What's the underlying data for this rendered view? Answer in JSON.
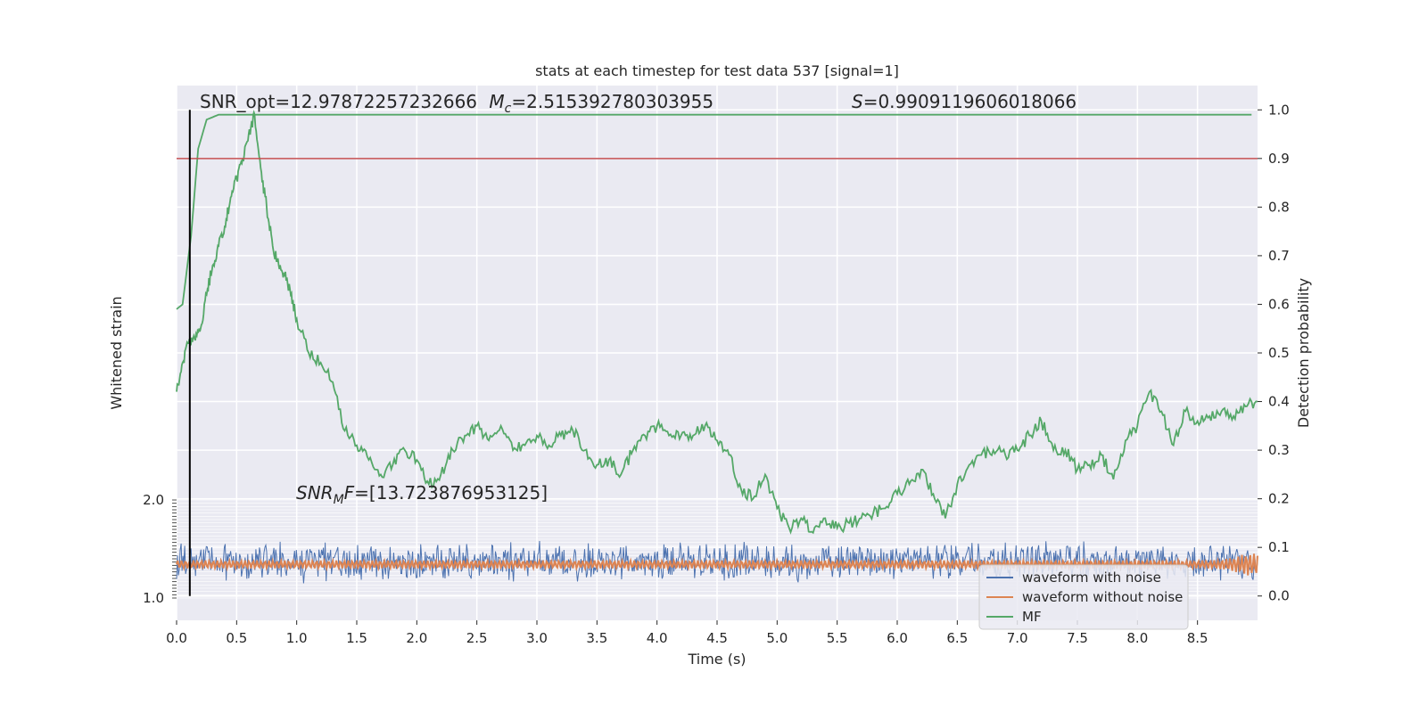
{
  "chart_data": {
    "type": "line",
    "title": "stats at each timestep for test data 537 [signal=1]",
    "xlabel": "Time (s)",
    "ylabel_left": "Whitened strain",
    "ylabel_right": "Detection probability",
    "xlim": [
      0.0,
      9.0
    ],
    "ylim_right": [
      -0.05,
      1.05
    ],
    "ylim_left": [
      -1.0,
      2.0
    ],
    "grid": true,
    "legend_placement": "lower-right",
    "x_ticks": [
      "0.0",
      "0.5",
      "1.0",
      "1.5",
      "2.0",
      "2.5",
      "3.0",
      "3.5",
      "4.0",
      "4.5",
      "5.0",
      "5.5",
      "6.0",
      "6.5",
      "7.0",
      "7.5",
      "8.0",
      "8.5"
    ],
    "y_right_ticks": [
      "0.0",
      "0.1",
      "0.2",
      "0.3",
      "0.4",
      "0.5",
      "0.6",
      "0.7",
      "0.8",
      "0.9",
      "1.0"
    ],
    "y_left_ticks_top": "2.0",
    "y_left_ticks_bottom": "1.0",
    "annotations": {
      "snr_opt_label": "SNR_opt=12.97872257232666",
      "mc_label": "M",
      "mc_sub": "c",
      "mc_value": "=2.515392780303955",
      "s_label": "S",
      "s_value": "=0.9909119606018066",
      "snr_mf_label": "SNR",
      "snr_mf_sub": "M",
      "snr_mf_tail": "F",
      "snr_mf_value": "=[13.723876953125]"
    },
    "threshold": 0.9,
    "marker_x": 0.11,
    "series": [
      {
        "name": "waveform with noise",
        "color": "#4c72b0",
        "axis": "left",
        "center": 0.07,
        "amplitude_half": 0.032
      },
      {
        "name": "waveform without noise",
        "color": "#dd8452",
        "axis": "left",
        "center": 0.065,
        "amplitude_half": 0.008
      },
      {
        "name": "MF",
        "color": "#55a868",
        "axis": "right",
        "x": [
          0.0,
          0.05,
          0.1,
          0.15,
          0.2,
          0.25,
          0.3,
          0.35,
          0.4,
          0.45,
          0.5,
          0.55,
          0.6,
          0.65,
          0.7,
          0.75,
          0.8,
          0.85,
          0.9,
          0.95,
          1.0,
          1.1,
          1.2,
          1.3,
          1.4,
          1.5,
          1.6,
          1.7,
          1.8,
          1.9,
          2.0,
          2.1,
          2.2,
          2.3,
          2.4,
          2.5,
          2.6,
          2.7,
          2.8,
          2.9,
          3.0,
          3.1,
          3.2,
          3.3,
          3.4,
          3.5,
          3.6,
          3.7,
          3.8,
          3.9,
          4.0,
          4.1,
          4.2,
          4.3,
          4.4,
          4.5,
          4.6,
          4.7,
          4.8,
          4.9,
          5.0,
          5.1,
          5.2,
          5.3,
          5.4,
          5.5,
          5.6,
          5.7,
          5.8,
          5.9,
          6.0,
          6.1,
          6.2,
          6.3,
          6.4,
          6.5,
          6.6,
          6.7,
          6.8,
          6.9,
          7.0,
          7.1,
          7.2,
          7.3,
          7.4,
          7.5,
          7.6,
          7.7,
          7.8,
          7.9,
          8.0,
          8.1,
          8.2,
          8.3,
          8.4,
          8.5,
          8.6,
          8.7,
          8.8,
          8.9,
          9.0
        ],
        "y": [
          0.42,
          0.48,
          0.52,
          0.53,
          0.55,
          0.62,
          0.68,
          0.72,
          0.76,
          0.82,
          0.86,
          0.9,
          0.95,
          0.99,
          0.88,
          0.8,
          0.72,
          0.68,
          0.66,
          0.62,
          0.57,
          0.5,
          0.48,
          0.44,
          0.34,
          0.31,
          0.28,
          0.25,
          0.27,
          0.3,
          0.28,
          0.23,
          0.25,
          0.3,
          0.33,
          0.35,
          0.32,
          0.35,
          0.3,
          0.31,
          0.33,
          0.31,
          0.33,
          0.34,
          0.3,
          0.27,
          0.28,
          0.25,
          0.3,
          0.33,
          0.35,
          0.33,
          0.33,
          0.33,
          0.35,
          0.32,
          0.29,
          0.22,
          0.2,
          0.25,
          0.18,
          0.14,
          0.16,
          0.13,
          0.16,
          0.14,
          0.15,
          0.16,
          0.17,
          0.18,
          0.21,
          0.23,
          0.26,
          0.21,
          0.16,
          0.23,
          0.27,
          0.29,
          0.3,
          0.29,
          0.3,
          0.33,
          0.36,
          0.3,
          0.3,
          0.26,
          0.27,
          0.29,
          0.24,
          0.32,
          0.35,
          0.42,
          0.38,
          0.31,
          0.38,
          0.36,
          0.37,
          0.38,
          0.37,
          0.39,
          0.4
        ]
      },
      {
        "name": "",
        "color": "#55a868",
        "axis": "right",
        "x": [
          0.0,
          0.05,
          0.12,
          0.18,
          0.25,
          0.3,
          0.35,
          0.4,
          0.5,
          0.6,
          0.7,
          1.0,
          2.0,
          4.0,
          6.0,
          8.0,
          8.95
        ],
        "y": [
          0.59,
          0.6,
          0.74,
          0.92,
          0.98,
          0.985,
          0.99,
          0.99,
          0.99,
          0.99,
          0.99,
          0.99,
          0.99,
          0.99,
          0.99,
          0.99,
          0.99
        ]
      }
    ]
  }
}
